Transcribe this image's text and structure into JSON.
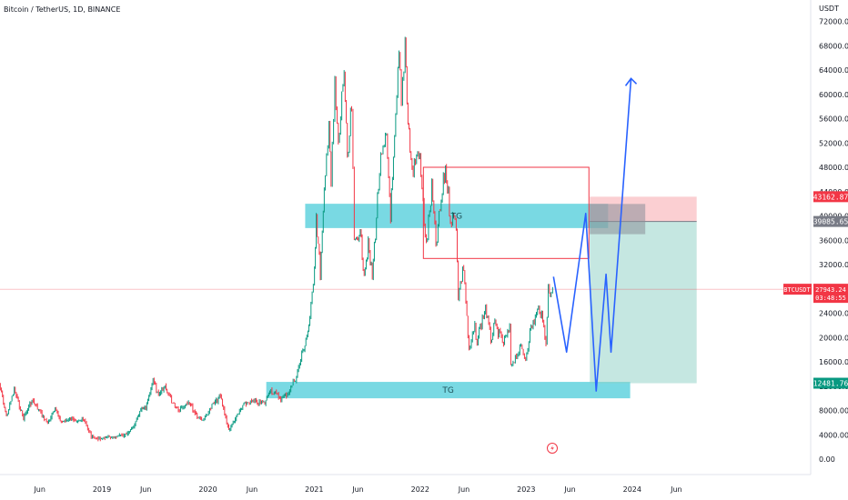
{
  "chart_data": {
    "type": "line",
    "title": "Bitcoin / TetherUS, 1D, BINANCE",
    "currency": "USDT",
    "y_ticks": [
      "72000.00",
      "68000.00",
      "64000.00",
      "60000.00",
      "56000.00",
      "52000.00",
      "48000.00",
      "44000.00",
      "40000.00",
      "36000.00",
      "32000.00",
      "28000.00",
      "24000.00",
      "20000.00",
      "16000.00",
      "12000.00",
      "8000.00",
      "4000.00",
      "0.00"
    ],
    "x_ticks": [
      "Jun",
      "2019",
      "Jun",
      "2020",
      "Jun",
      "2021",
      "Jun",
      "2022",
      "Jun",
      "2023",
      "Jun",
      "2024",
      "Jun"
    ],
    "ylim": [
      -1400,
      74000
    ],
    "price_series": {
      "name": "BTCUSDT",
      "points": [
        [
          "2018-01-01",
          13500
        ],
        [
          "2018-01-20",
          11000
        ],
        [
          "2018-02-06",
          7000
        ],
        [
          "2018-03-05",
          11400
        ],
        [
          "2018-04-06",
          6700
        ],
        [
          "2018-05-05",
          9700
        ],
        [
          "2018-06-28",
          5900
        ],
        [
          "2018-07-24",
          8200
        ],
        [
          "2018-08-14",
          6200
        ],
        [
          "2018-09-15",
          6500
        ],
        [
          "2018-11-01",
          6400
        ],
        [
          "2018-11-25",
          3800
        ],
        [
          "2018-12-15",
          3300
        ],
        [
          "2019-01-15",
          3600
        ],
        [
          "2019-02-15",
          3600
        ],
        [
          "2019-03-30",
          4100
        ],
        [
          "2019-04-20",
          5300
        ],
        [
          "2019-05-15",
          8000
        ],
        [
          "2019-06-01",
          8500
        ],
        [
          "2019-06-26",
          13000
        ],
        [
          "2019-07-15",
          10200
        ],
        [
          "2019-08-06",
          12000
        ],
        [
          "2019-08-29",
          9500
        ],
        [
          "2019-09-25",
          8200
        ],
        [
          "2019-10-26",
          9500
        ],
        [
          "2019-11-25",
          7000
        ],
        [
          "2019-12-18",
          6500
        ],
        [
          "2020-01-15",
          8800
        ],
        [
          "2020-02-13",
          10300
        ],
        [
          "2020-03-13",
          4800
        ],
        [
          "2020-04-30",
          8700
        ],
        [
          "2020-05-15",
          9300
        ],
        [
          "2020-06-15",
          9400
        ],
        [
          "2020-07-15",
          9200
        ],
        [
          "2020-08-01",
          11500
        ],
        [
          "2020-09-08",
          10000
        ],
        [
          "2020-10-01",
          10700
        ],
        [
          "2020-11-01",
          13700
        ],
        [
          "2020-11-30",
          19000
        ],
        [
          "2020-12-17",
          22500
        ],
        [
          "2021-01-02",
          32000
        ],
        [
          "2021-01-08",
          40000
        ],
        [
          "2021-01-22",
          30500
        ],
        [
          "2021-02-08",
          46000
        ],
        [
          "2021-02-21",
          57000
        ],
        [
          "2021-02-28",
          45000
        ],
        [
          "2021-03-13",
          61000
        ],
        [
          "2021-03-25",
          51000
        ],
        [
          "2021-04-14",
          64500
        ],
        [
          "2021-04-25",
          48000
        ],
        [
          "2021-05-10",
          58000
        ],
        [
          "2021-05-19",
          35000
        ],
        [
          "2021-06-05",
          38000
        ],
        [
          "2021-06-22",
          31000
        ],
        [
          "2021-07-06",
          35000
        ],
        [
          "2021-07-20",
          30000
        ],
        [
          "2021-08-14",
          47500
        ],
        [
          "2021-09-07",
          52500
        ],
        [
          "2021-09-21",
          40500
        ],
        [
          "2021-10-01",
          48000
        ],
        [
          "2021-10-20",
          66000
        ],
        [
          "2021-10-28",
          58000
        ],
        [
          "2021-11-10",
          69000
        ],
        [
          "2021-11-20",
          56000
        ],
        [
          "2021-12-04",
          47000
        ],
        [
          "2021-12-27",
          51000
        ],
        [
          "2022-01-22",
          35000
        ],
        [
          "2022-02-10",
          44500
        ],
        [
          "2022-02-24",
          35000
        ],
        [
          "2022-03-29",
          48000
        ],
        [
          "2022-04-15",
          40000
        ],
        [
          "2022-05-05",
          39000
        ],
        [
          "2022-05-12",
          27000
        ],
        [
          "2022-05-31",
          31800
        ],
        [
          "2022-06-18",
          17600
        ],
        [
          "2022-07-08",
          21900
        ],
        [
          "2022-07-12",
          19000
        ],
        [
          "2022-08-14",
          25000
        ],
        [
          "2022-09-01",
          19600
        ],
        [
          "2022-09-15",
          22000
        ],
        [
          "2022-10-15",
          19000
        ],
        [
          "2022-11-05",
          21300
        ],
        [
          "2022-11-09",
          15600
        ],
        [
          "2022-12-14",
          18300
        ],
        [
          "2022-12-30",
          16500
        ],
        [
          "2023-01-14",
          21000
        ],
        [
          "2023-02-16",
          25000
        ],
        [
          "2023-03-10",
          19600
        ],
        [
          "2023-03-18",
          28000
        ],
        [
          "2023-03-22",
          27000
        ],
        [
          "2023-03-28",
          27400
        ],
        [
          "2023-04-02",
          27943.24
        ]
      ]
    },
    "projection_path": {
      "points": [
        [
          "2023-04-05",
          30000
        ],
        [
          "2023-05-20",
          17600
        ],
        [
          "2023-07-25",
          40400
        ],
        [
          "2023-08-30",
          11200
        ],
        [
          "2023-10-03",
          30400
        ],
        [
          "2023-10-20",
          17600
        ],
        [
          "2023-12-28",
          62600
        ]
      ]
    },
    "zones": [
      {
        "label": "TG",
        "from": "2020-12-01",
        "to": "2023-10-10",
        "low": 38000,
        "high": 42000
      },
      {
        "label": "TG",
        "from": "2020-07-20",
        "to": "2023-12-25",
        "low": 10000,
        "high": 12700
      }
    ],
    "rect_outline": {
      "from": "2022-01-12",
      "to": "2023-08-05",
      "low": 33000,
      "high": 48000
    },
    "position": {
      "entry": 39085.65,
      "target": 43162.87,
      "stop": 12481.76,
      "from": "2023-08-08",
      "to": "2024-08-10",
      "tool_from": "2023-08-08",
      "tool_to": "2024-02-15"
    },
    "price_tags": [
      {
        "value": 43162.87,
        "text": "43162.87",
        "color": "#f23645"
      },
      {
        "value": 39085.65,
        "text": "39085.65",
        "color": "#787b86"
      },
      {
        "value": 27943.24,
        "text": "27943.24",
        "color": "#f23645",
        "label": "BTCUSDT",
        "countdown": "03:48:55"
      },
      {
        "value": 12481.76,
        "text": "12481.76",
        "color": "#089981"
      }
    ],
    "grid": false,
    "legend": "none"
  }
}
